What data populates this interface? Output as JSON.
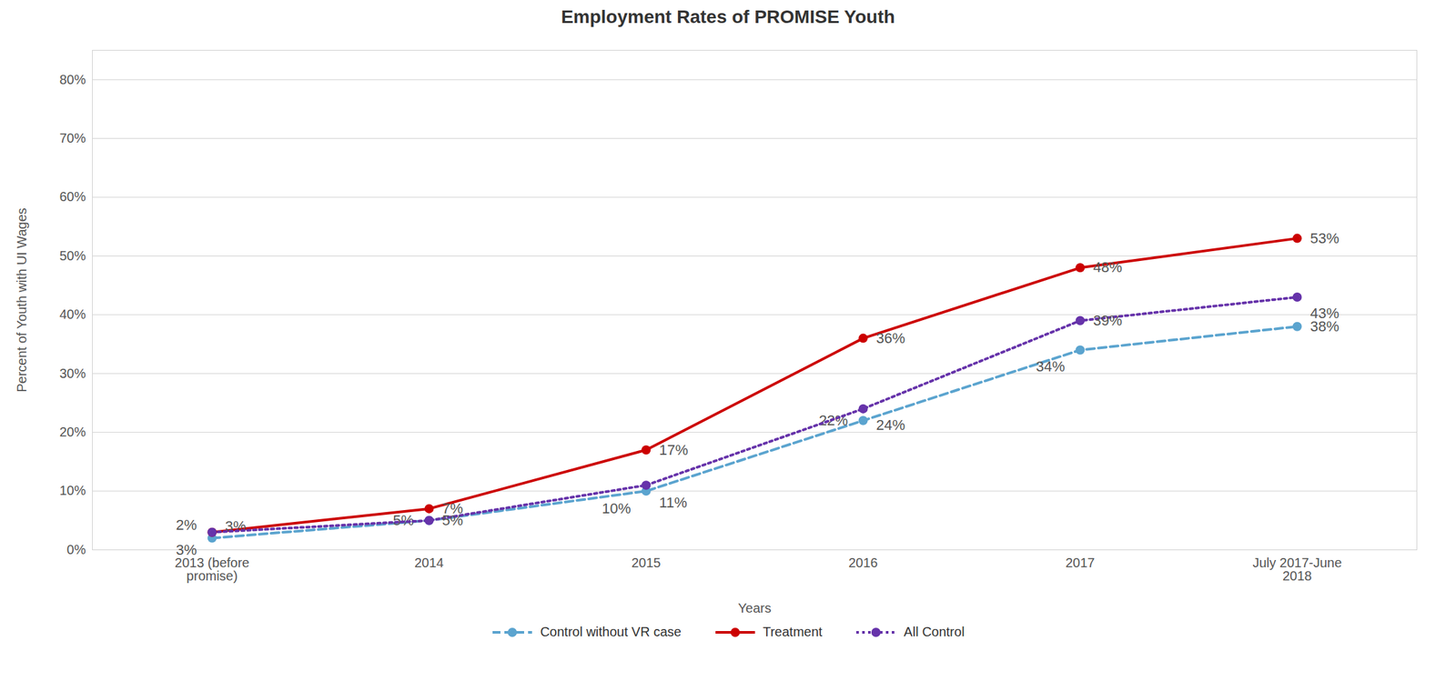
{
  "chart_data": {
    "type": "line",
    "title": "Employment Rates of PROMISE Youth",
    "xlabel": "Years",
    "ylabel": "Percent of Youth with UI Wages",
    "categories": [
      "2013 (before\npromise)",
      "2014",
      "2015",
      "2016",
      "2017",
      "July 2017-June\n2018"
    ],
    "series": [
      {
        "name": "Control without VR case",
        "color": "#5BA4CF",
        "line_style": "dashed",
        "marker": "circle",
        "values": [
          0.02,
          0.05,
          0.1,
          0.22,
          0.34,
          0.38
        ],
        "value_labels": [
          "2%",
          "5%",
          "10%",
          "22%",
          "34%",
          "38%"
        ]
      },
      {
        "name": "Treatment",
        "color": "#CC0000",
        "line_style": "solid",
        "marker": "circle",
        "values": [
          0.03,
          0.07,
          0.17,
          0.36,
          0.48,
          0.53
        ],
        "value_labels": [
          "3%",
          "7%",
          "17%",
          "36%",
          "48%",
          "53%"
        ]
      },
      {
        "name": "All Control",
        "color": "#6633AA",
        "line_style": "dotted",
        "marker": "circle",
        "values": [
          0.03,
          0.05,
          0.11,
          0.24,
          0.39,
          0.43
        ],
        "value_labels": [
          "3%",
          "5%",
          "11%",
          "24%",
          "39%",
          "43%"
        ]
      }
    ],
    "ylim": [
      0,
      0.85
    ],
    "yticks": [
      {
        "value": 0.0,
        "label": "0%"
      },
      {
        "value": 0.1,
        "label": "10%"
      },
      {
        "value": 0.2,
        "label": "20%"
      },
      {
        "value": 0.3,
        "label": "30%"
      },
      {
        "value": 0.4,
        "label": "40%"
      },
      {
        "value": 0.5,
        "label": "50%"
      },
      {
        "value": 0.6,
        "label": "60%"
      },
      {
        "value": 0.7,
        "label": "70%"
      },
      {
        "value": 0.8,
        "label": "80%"
      }
    ],
    "grid": true,
    "data_labels": true,
    "legend": "bottom"
  }
}
